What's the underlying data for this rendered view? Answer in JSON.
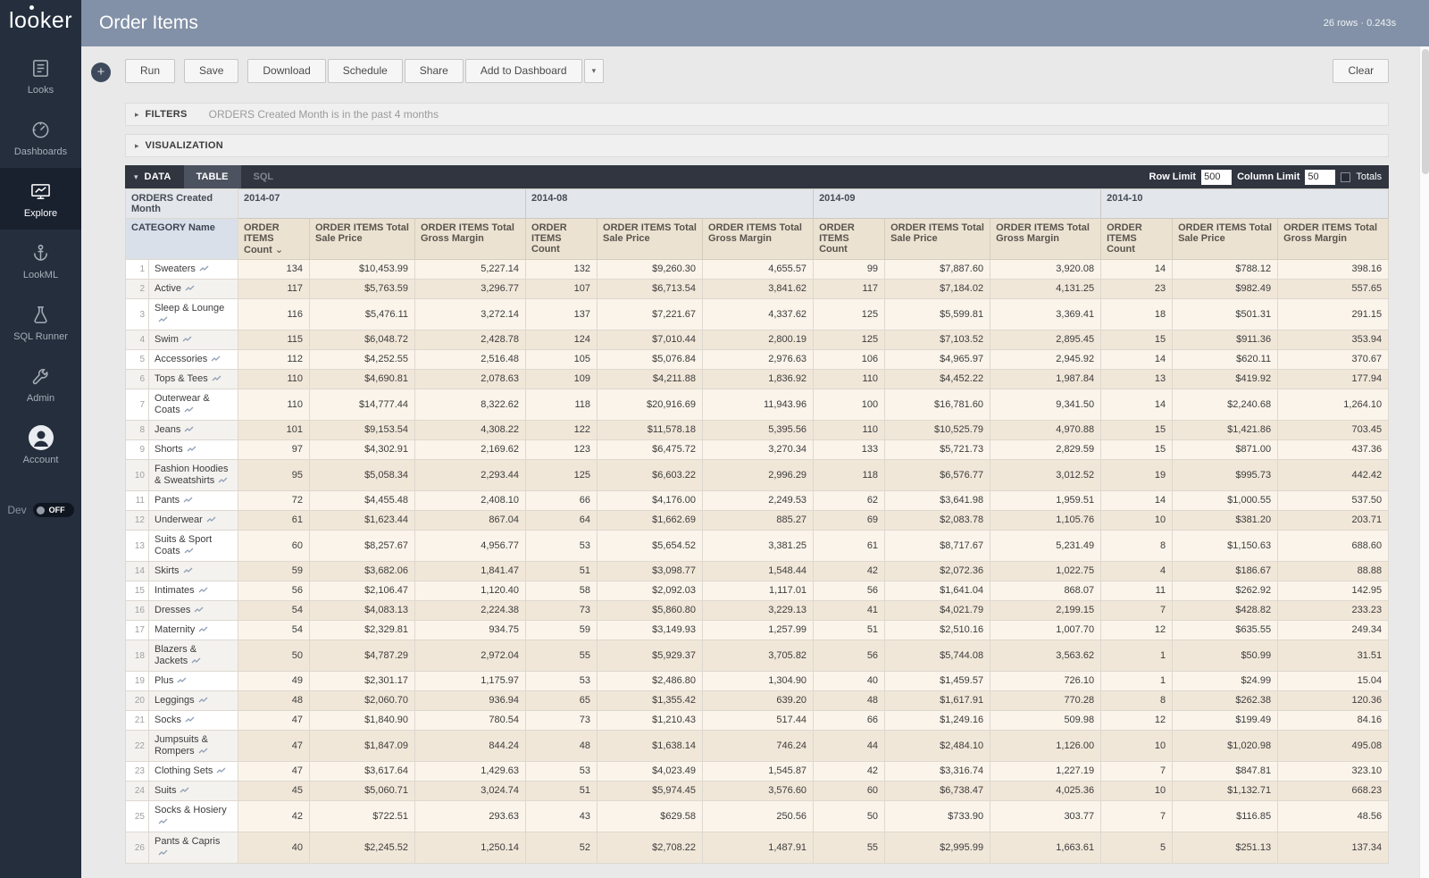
{
  "app": {
    "logo_text": "looker",
    "title": "Order Items",
    "result_meta": "26 rows · 0.243s"
  },
  "icons": {
    "plus": "+",
    "caret_down": "▾",
    "triangle_right": "▸",
    "triangle_down": "▾",
    "sort_desc": "⌄"
  },
  "sidebar": {
    "items": [
      {
        "label": "Looks"
      },
      {
        "label": "Dashboards"
      },
      {
        "label": "Explore",
        "active": true
      },
      {
        "label": "LookML"
      },
      {
        "label": "SQL Runner"
      },
      {
        "label": "Admin"
      },
      {
        "label": "Account"
      }
    ],
    "dev": {
      "label": "Dev",
      "state": "OFF"
    }
  },
  "toolbar": {
    "run": "Run",
    "save": "Save",
    "download": "Download",
    "schedule": "Schedule",
    "share": "Share",
    "add_to_dashboard": "Add to Dashboard",
    "clear": "Clear"
  },
  "filters": {
    "label": "FILTERS",
    "summary": "ORDERS Created Month is in the past 4 months"
  },
  "visualization": {
    "label": "VISUALIZATION"
  },
  "data_panel": {
    "label": "DATA",
    "tab_table": "TABLE",
    "tab_sql": "SQL",
    "row_limit_label": "Row Limit",
    "row_limit_value": "500",
    "column_limit_label": "Column Limit",
    "column_limit_value": "50",
    "totals_label": "Totals"
  },
  "table": {
    "pivot_label": "ORDERS Created Month",
    "dimension_header": "CATEGORY Name",
    "months": [
      "2014-07",
      "2014-08",
      "2014-09",
      "2014-10"
    ],
    "measures": [
      "ORDER ITEMS Count",
      "ORDER ITEMS Total Sale Price",
      "ORDER ITEMS Total Gross Margin"
    ],
    "rows": [
      {
        "category": "Sweaters",
        "values": [
          "134",
          "$10,453.99",
          "5,227.14",
          "132",
          "$9,260.30",
          "4,655.57",
          "99",
          "$7,887.60",
          "3,920.08",
          "14",
          "$788.12",
          "398.16"
        ]
      },
      {
        "category": "Active",
        "values": [
          "117",
          "$5,763.59",
          "3,296.77",
          "107",
          "$6,713.54",
          "3,841.62",
          "117",
          "$7,184.02",
          "4,131.25",
          "23",
          "$982.49",
          "557.65"
        ]
      },
      {
        "category": "Sleep & Lounge",
        "values": [
          "116",
          "$5,476.11",
          "3,272.14",
          "137",
          "$7,221.67",
          "4,337.62",
          "125",
          "$5,599.81",
          "3,369.41",
          "18",
          "$501.31",
          "291.15"
        ]
      },
      {
        "category": "Swim",
        "values": [
          "115",
          "$6,048.72",
          "2,428.78",
          "124",
          "$7,010.44",
          "2,800.19",
          "125",
          "$7,103.52",
          "2,895.45",
          "15",
          "$911.36",
          "353.94"
        ]
      },
      {
        "category": "Accessories",
        "values": [
          "112",
          "$4,252.55",
          "2,516.48",
          "105",
          "$5,076.84",
          "2,976.63",
          "106",
          "$4,965.97",
          "2,945.92",
          "14",
          "$620.11",
          "370.67"
        ]
      },
      {
        "category": "Tops & Tees",
        "values": [
          "110",
          "$4,690.81",
          "2,078.63",
          "109",
          "$4,211.88",
          "1,836.92",
          "110",
          "$4,452.22",
          "1,987.84",
          "13",
          "$419.92",
          "177.94"
        ]
      },
      {
        "category": "Outerwear & Coats",
        "values": [
          "110",
          "$14,777.44",
          "8,322.62",
          "118",
          "$20,916.69",
          "11,943.96",
          "100",
          "$16,781.60",
          "9,341.50",
          "14",
          "$2,240.68",
          "1,264.10"
        ]
      },
      {
        "category": "Jeans",
        "values": [
          "101",
          "$9,153.54",
          "4,308.22",
          "122",
          "$11,578.18",
          "5,395.56",
          "110",
          "$10,525.79",
          "4,970.88",
          "15",
          "$1,421.86",
          "703.45"
        ]
      },
      {
        "category": "Shorts",
        "values": [
          "97",
          "$4,302.91",
          "2,169.62",
          "123",
          "$6,475.72",
          "3,270.34",
          "133",
          "$5,721.73",
          "2,829.59",
          "15",
          "$871.00",
          "437.36"
        ]
      },
      {
        "category": "Fashion Hoodies & Sweatshirts",
        "values": [
          "95",
          "$5,058.34",
          "2,293.44",
          "125",
          "$6,603.22",
          "2,996.29",
          "118",
          "$6,576.77",
          "3,012.52",
          "19",
          "$995.73",
          "442.42"
        ]
      },
      {
        "category": "Pants",
        "values": [
          "72",
          "$4,455.48",
          "2,408.10",
          "66",
          "$4,176.00",
          "2,249.53",
          "62",
          "$3,641.98",
          "1,959.51",
          "14",
          "$1,000.55",
          "537.50"
        ]
      },
      {
        "category": "Underwear",
        "values": [
          "61",
          "$1,623.44",
          "867.04",
          "64",
          "$1,662.69",
          "885.27",
          "69",
          "$2,083.78",
          "1,105.76",
          "10",
          "$381.20",
          "203.71"
        ]
      },
      {
        "category": "Suits & Sport Coats",
        "values": [
          "60",
          "$8,257.67",
          "4,956.77",
          "53",
          "$5,654.52",
          "3,381.25",
          "61",
          "$8,717.67",
          "5,231.49",
          "8",
          "$1,150.63",
          "688.60"
        ]
      },
      {
        "category": "Skirts",
        "values": [
          "59",
          "$3,682.06",
          "1,841.47",
          "51",
          "$3,098.77",
          "1,548.44",
          "42",
          "$2,072.36",
          "1,022.75",
          "4",
          "$186.67",
          "88.88"
        ]
      },
      {
        "category": "Intimates",
        "values": [
          "56",
          "$2,106.47",
          "1,120.40",
          "58",
          "$2,092.03",
          "1,117.01",
          "56",
          "$1,641.04",
          "868.07",
          "11",
          "$262.92",
          "142.95"
        ]
      },
      {
        "category": "Dresses",
        "values": [
          "54",
          "$4,083.13",
          "2,224.38",
          "73",
          "$5,860.80",
          "3,229.13",
          "41",
          "$4,021.79",
          "2,199.15",
          "7",
          "$428.82",
          "233.23"
        ]
      },
      {
        "category": "Maternity",
        "values": [
          "54",
          "$2,329.81",
          "934.75",
          "59",
          "$3,149.93",
          "1,257.99",
          "51",
          "$2,510.16",
          "1,007.70",
          "12",
          "$635.55",
          "249.34"
        ]
      },
      {
        "category": "Blazers & Jackets",
        "values": [
          "50",
          "$4,787.29",
          "2,972.04",
          "55",
          "$5,929.37",
          "3,705.82",
          "56",
          "$5,744.08",
          "3,563.62",
          "1",
          "$50.99",
          "31.51"
        ]
      },
      {
        "category": "Plus",
        "values": [
          "49",
          "$2,301.17",
          "1,175.97",
          "53",
          "$2,486.80",
          "1,304.90",
          "40",
          "$1,459.57",
          "726.10",
          "1",
          "$24.99",
          "15.04"
        ]
      },
      {
        "category": "Leggings",
        "values": [
          "48",
          "$2,060.70",
          "936.94",
          "65",
          "$1,355.42",
          "639.20",
          "48",
          "$1,617.91",
          "770.28",
          "8",
          "$262.38",
          "120.36"
        ]
      },
      {
        "category": "Socks",
        "values": [
          "47",
          "$1,840.90",
          "780.54",
          "73",
          "$1,210.43",
          "517.44",
          "66",
          "$1,249.16",
          "509.98",
          "12",
          "$199.49",
          "84.16"
        ]
      },
      {
        "category": "Jumpsuits & Rompers",
        "values": [
          "47",
          "$1,847.09",
          "844.24",
          "48",
          "$1,638.14",
          "746.24",
          "44",
          "$2,484.10",
          "1,126.00",
          "10",
          "$1,020.98",
          "495.08"
        ]
      },
      {
        "category": "Clothing Sets",
        "values": [
          "47",
          "$3,617.64",
          "1,429.63",
          "53",
          "$4,023.49",
          "1,545.87",
          "42",
          "$3,316.74",
          "1,227.19",
          "7",
          "$847.81",
          "323.10"
        ]
      },
      {
        "category": "Suits",
        "values": [
          "45",
          "$5,060.71",
          "3,024.74",
          "51",
          "$5,974.45",
          "3,576.60",
          "60",
          "$6,738.47",
          "4,025.36",
          "10",
          "$1,132.71",
          "668.23"
        ]
      },
      {
        "category": "Socks & Hosiery",
        "values": [
          "42",
          "$722.51",
          "293.63",
          "43",
          "$629.58",
          "250.56",
          "50",
          "$733.90",
          "303.77",
          "7",
          "$116.85",
          "48.56"
        ]
      },
      {
        "category": "Pants & Capris",
        "values": [
          "40",
          "$2,245.52",
          "1,250.14",
          "52",
          "$2,708.22",
          "1,487.91",
          "55",
          "$2,995.99",
          "1,663.61",
          "5",
          "$251.13",
          "137.34"
        ]
      }
    ]
  }
}
